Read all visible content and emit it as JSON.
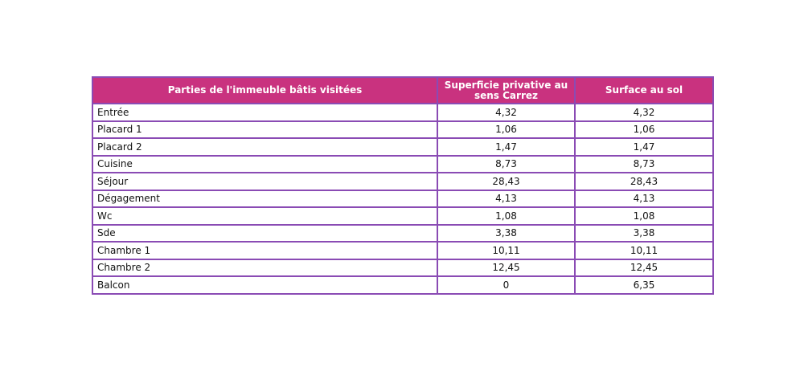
{
  "table": {
    "header": [
      "Parties de l'immeuble bâtis visitées",
      "Superficie privative au sens Carrez",
      "Surface au sol"
    ],
    "rows": [
      [
        "Entrée",
        "4,32",
        "4,32"
      ],
      [
        "Placard 1",
        "1,06",
        "1,06"
      ],
      [
        "Placard 2",
        "1,47",
        "1,47"
      ],
      [
        "Cuisine",
        "8,73",
        "8,73"
      ],
      [
        "Séjour",
        "28,43",
        "28,43"
      ],
      [
        "Dégagement",
        "4,13",
        "4,13"
      ],
      [
        "Wc",
        "1,08",
        "1,08"
      ],
      [
        "Sde",
        "3,38",
        "3,38"
      ],
      [
        "Chambre 1",
        "10,11",
        "10,11"
      ],
      [
        "Chambre 2",
        "12,45",
        "12,45"
      ],
      [
        "Balcon",
        "0",
        "6,35"
      ]
    ]
  }
}
